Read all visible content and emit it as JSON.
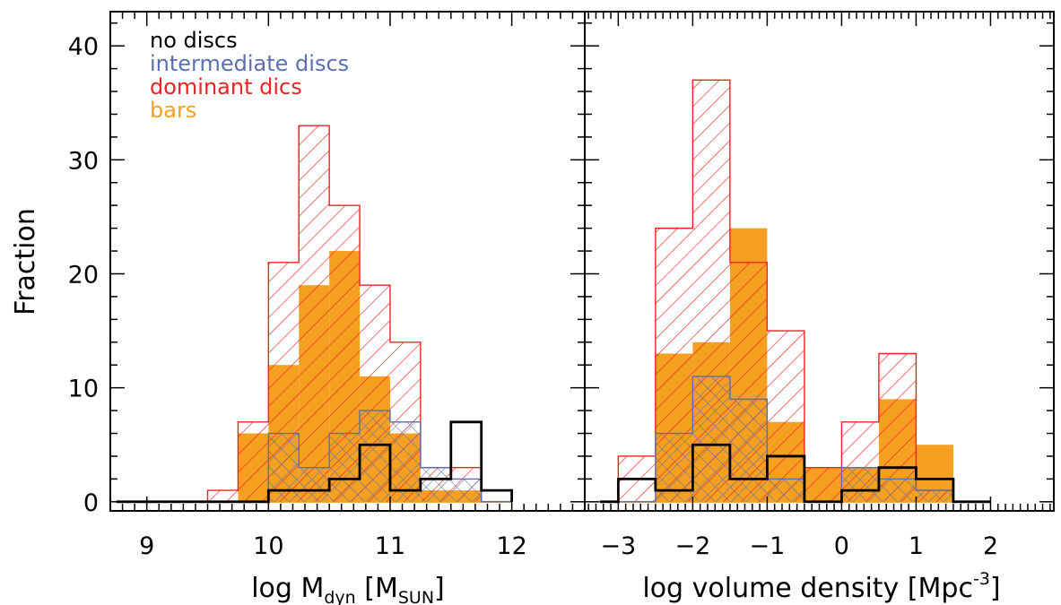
{
  "chart_data": [
    {
      "type": "bar",
      "panel": "left",
      "xlabel": {
        "prefix": "log M",
        "sub": "dyn",
        "mid": " [M",
        "sub2": "SUN",
        "suffix": "]"
      },
      "ylabel": "Fraction",
      "xlim": [
        8.7,
        12.6
      ],
      "ylim": [
        -0.8,
        43
      ],
      "xticks": [
        9,
        10,
        11,
        12
      ],
      "yticks": [
        0,
        10,
        20,
        30,
        40
      ],
      "bin_edges": [
        8.75,
        9.0,
        9.25,
        9.5,
        9.75,
        10.0,
        10.25,
        10.5,
        10.75,
        11.0,
        11.25,
        11.5,
        11.75,
        12.0
      ],
      "legend": {
        "placement": "top-left",
        "entries": [
          {
            "label": "no discs",
            "color": "#000000"
          },
          {
            "label": "intermediate discs",
            "color": "#5a6fb0"
          },
          {
            "label": "dominant dics",
            "color": "#ee2222"
          },
          {
            "label": "bars",
            "color": "#f5a020"
          }
        ]
      },
      "series": [
        {
          "name": "bars",
          "style": "filled",
          "color": "#f5a020",
          "values": [
            0,
            0,
            0,
            0,
            6,
            12,
            19,
            22,
            11,
            6,
            1,
            1,
            0
          ]
        },
        {
          "name": "dominant dics",
          "style": "hatch-diagonal",
          "color": "#ee2222",
          "values": [
            0,
            0,
            0,
            1,
            7,
            21,
            33,
            26,
            19,
            14,
            3,
            3,
            0
          ]
        },
        {
          "name": "intermediate discs",
          "style": "hatch-cross",
          "color": "#5a6fb0",
          "values": [
            0,
            0,
            0,
            0,
            0,
            6,
            3,
            6,
            8,
            7,
            3,
            2,
            0
          ]
        },
        {
          "name": "no discs",
          "style": "outline",
          "color": "#000000",
          "values": [
            0,
            0,
            0,
            0,
            0,
            1,
            1,
            2,
            5,
            1,
            2,
            7,
            1
          ]
        }
      ]
    },
    {
      "type": "bar",
      "panel": "right",
      "xlabel": {
        "prefix": "log volume density [Mpc",
        "sup": "-3",
        "suffix": "]"
      },
      "xlim": [
        -3.45,
        2.85
      ],
      "ylim": [
        -0.8,
        43
      ],
      "xticks": [
        -3,
        -2,
        -1,
        0,
        1,
        2
      ],
      "xtick_labels": [
        "−3",
        "−2",
        "−1",
        "0",
        "1",
        "2"
      ],
      "yticks": [
        0,
        10,
        20,
        30,
        40
      ],
      "bin_edges": [
        -3.25,
        -3.0,
        -2.5,
        -2.0,
        -1.5,
        -1.0,
        -0.5,
        0.0,
        0.5,
        1.0,
        1.5,
        2.0
      ],
      "series": [
        {
          "name": "bars",
          "style": "filled",
          "color": "#f5a020",
          "values": [
            0,
            0,
            13,
            14,
            24,
            7,
            3,
            3,
            9,
            5,
            0
          ]
        },
        {
          "name": "dominant dics",
          "style": "hatch-diagonal",
          "color": "#ee2222",
          "values": [
            0,
            4,
            24,
            37,
            21,
            15,
            3,
            7,
            13,
            1,
            0
          ]
        },
        {
          "name": "intermediate discs",
          "style": "hatch-cross",
          "color": "#5a6fb0",
          "values": [
            0,
            0,
            6,
            11,
            9,
            2,
            0,
            3,
            2,
            1,
            0
          ]
        },
        {
          "name": "no discs",
          "style": "outline",
          "color": "#000000",
          "values": [
            0,
            2,
            1,
            5,
            2,
            4,
            0,
            1,
            3,
            2,
            0
          ]
        }
      ]
    }
  ]
}
